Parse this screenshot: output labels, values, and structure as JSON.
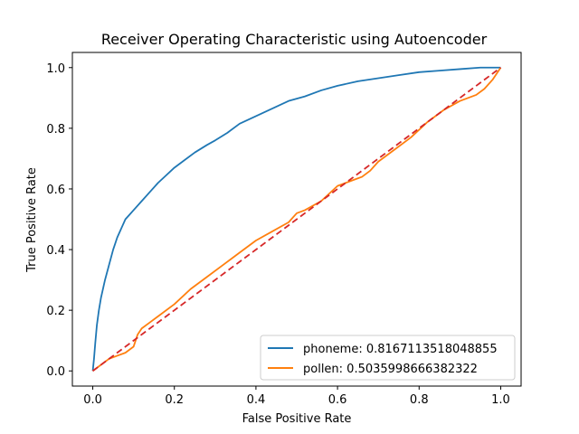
{
  "chart_data": {
    "type": "line",
    "title": "Receiver Operating Characteristic using Autoencoder",
    "xlabel": "False Positive Rate",
    "ylabel": "True Positive Rate",
    "xlim": [
      -0.05,
      1.05
    ],
    "ylim": [
      -0.05,
      1.05
    ],
    "xticks": [
      0.0,
      0.2,
      0.4,
      0.6,
      0.8,
      1.0
    ],
    "yticks": [
      0.0,
      0.2,
      0.4,
      0.6,
      0.8,
      1.0
    ],
    "xtick_labels": [
      "0.0",
      "0.2",
      "0.4",
      "0.6",
      "0.8",
      "1.0"
    ],
    "ytick_labels": [
      "0.0",
      "0.2",
      "0.4",
      "0.6",
      "0.8",
      "1.0"
    ],
    "grid": false,
    "legend_position": "lower-right",
    "series": [
      {
        "name": "phoneme: 0.8167113518048855",
        "color": "#1f77b4",
        "style": "solid",
        "x": [
          0,
          0.003,
          0.006,
          0.01,
          0.015,
          0.02,
          0.03,
          0.04,
          0.05,
          0.06,
          0.07,
          0.08,
          0.09,
          0.1,
          0.12,
          0.14,
          0.16,
          0.18,
          0.2,
          0.22,
          0.25,
          0.28,
          0.3,
          0.33,
          0.36,
          0.4,
          0.44,
          0.48,
          0.52,
          0.56,
          0.6,
          0.65,
          0.7,
          0.75,
          0.8,
          0.85,
          0.9,
          0.95,
          1.0
        ],
        "y": [
          0,
          0.04,
          0.09,
          0.15,
          0.2,
          0.24,
          0.3,
          0.35,
          0.4,
          0.44,
          0.47,
          0.5,
          0.515,
          0.53,
          0.56,
          0.59,
          0.62,
          0.645,
          0.67,
          0.69,
          0.72,
          0.745,
          0.76,
          0.785,
          0.815,
          0.84,
          0.865,
          0.89,
          0.905,
          0.925,
          0.94,
          0.955,
          0.965,
          0.975,
          0.985,
          0.99,
          0.995,
          1.0,
          1.0
        ]
      },
      {
        "name": "pollen: 0.5035998666382322",
        "color": "#ff7f0e",
        "style": "solid",
        "x": [
          0,
          0.02,
          0.04,
          0.06,
          0.08,
          0.1,
          0.11,
          0.12,
          0.14,
          0.16,
          0.2,
          0.24,
          0.28,
          0.32,
          0.36,
          0.4,
          0.44,
          0.48,
          0.5,
          0.52,
          0.56,
          0.6,
          0.64,
          0.66,
          0.68,
          0.7,
          0.74,
          0.78,
          0.82,
          0.86,
          0.9,
          0.94,
          0.96,
          0.98,
          1.0
        ],
        "y": [
          0,
          0.02,
          0.04,
          0.05,
          0.06,
          0.08,
          0.12,
          0.14,
          0.16,
          0.18,
          0.22,
          0.27,
          0.31,
          0.35,
          0.39,
          0.43,
          0.46,
          0.49,
          0.52,
          0.53,
          0.56,
          0.61,
          0.63,
          0.64,
          0.66,
          0.69,
          0.73,
          0.77,
          0.82,
          0.86,
          0.89,
          0.91,
          0.93,
          0.96,
          1.0
        ]
      },
      {
        "name": "",
        "color": "#d62728",
        "style": "dashed",
        "x": [
          0,
          1
        ],
        "y": [
          0,
          1
        ]
      }
    ]
  }
}
